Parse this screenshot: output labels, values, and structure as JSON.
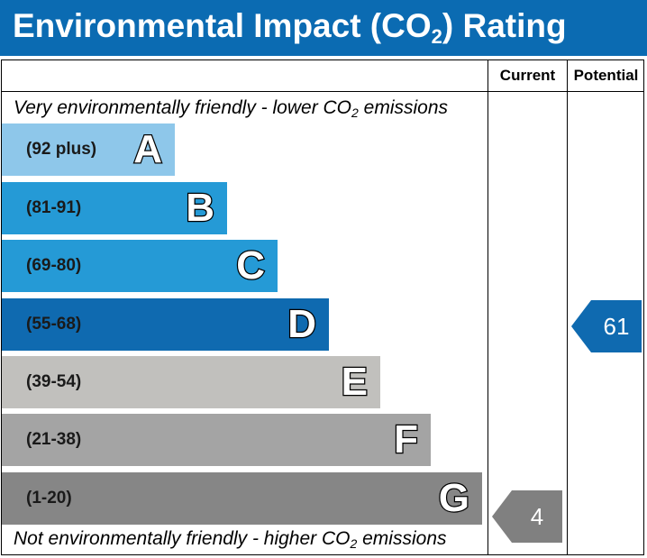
{
  "title": "Environmental Impact (CO",
  "title_sub": "2",
  "title_end": ") Rating",
  "columns": {
    "current": "Current",
    "potential": "Potential"
  },
  "top_caption": {
    "pre": "Very environmentally friendly - lower CO",
    "sub": "2",
    "post": " emissions"
  },
  "bottom_caption": {
    "pre": "Not environmentally friendly - higher CO",
    "sub": "2",
    "post": " emissions"
  },
  "bands": [
    {
      "letter": "A",
      "range": "(92 plus)",
      "color": "#8ec7ea"
    },
    {
      "letter": "B",
      "range": "(81-91)",
      "color": "#259ad6"
    },
    {
      "letter": "C",
      "range": "(69-80)",
      "color": "#259ad6"
    },
    {
      "letter": "D",
      "range": "(55-68)",
      "color": "#0f6ab0"
    },
    {
      "letter": "E",
      "range": "(39-54)",
      "color": "#c1c0bd"
    },
    {
      "letter": "F",
      "range": "(21-38)",
      "color": "#a4a4a4"
    },
    {
      "letter": "G",
      "range": "(1-20)",
      "color": "#868686"
    }
  ],
  "current": {
    "value": "4",
    "band": "G",
    "color": "#808080"
  },
  "potential": {
    "value": "61",
    "band": "D",
    "color": "#0f6ab0"
  }
}
